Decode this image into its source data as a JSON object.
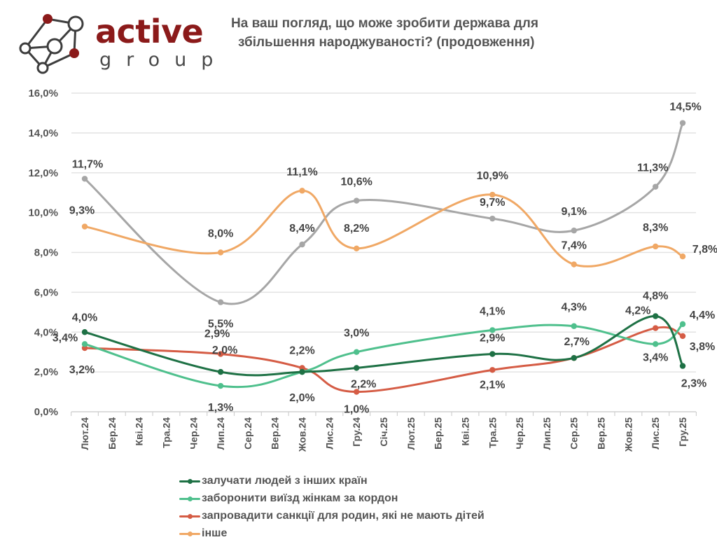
{
  "brand": {
    "name_top": "active",
    "name_bottom": "group",
    "logo_icon": "network-nodes-icon",
    "colors": {
      "primary": "#8b1a1a",
      "secondary": "#4a4a4a"
    }
  },
  "title": {
    "line1": "На ваш погляд, що може зробити держава для",
    "line2": "збільшення народжуваності? (продовження)"
  },
  "chart_data": {
    "type": "line",
    "title": "На ваш погляд, що може зробити держава для збільшення народжуваності? (продовження)",
    "xlabel": "",
    "ylabel": "",
    "ylim": [
      0,
      16
    ],
    "y_ticks": [
      "0,0%",
      "2,0%",
      "4,0%",
      "6,0%",
      "8,0%",
      "10,0%",
      "12,0%",
      "14,0%",
      "16,0%"
    ],
    "y_tick_values": [
      0,
      2,
      4,
      6,
      8,
      10,
      12,
      14,
      16
    ],
    "grid": true,
    "smooth": true,
    "legend_position": "bottom",
    "categories": [
      "Лют.24",
      "Бер.24",
      "Кві.24",
      "Тра.24",
      "Чер.24",
      "Лип.24",
      "Сер.24",
      "Вер.24",
      "Жов.24",
      "Лис.24",
      "Гру.24",
      "Січ.25",
      "Лют.25",
      "Бер.25",
      "Кві.25",
      "Тра.25",
      "Чер.25",
      "Лип.25",
      "Сер.25",
      "Вер.25",
      "Жов.25",
      "Лис.25",
      "Гру.25"
    ],
    "series": [
      {
        "name": "залучати людей з інших країн",
        "color": "#1e7145",
        "points": [
          {
            "x": "Лют.24",
            "y": 4.0,
            "label": "4,0%"
          },
          {
            "x": "Лип.24",
            "y": 2.0,
            "label": "2,0%"
          },
          {
            "x": "Жов.24",
            "y": 2.0,
            "label": "2,0%"
          },
          {
            "x": "Гру.24",
            "y": 2.2,
            "label": "2,2%"
          },
          {
            "x": "Тра.25",
            "y": 2.9,
            "label": "2,9%"
          },
          {
            "x": "Сер.25",
            "y": 2.7,
            "label": "2,7%"
          },
          {
            "x": "Лис.25",
            "y": 4.8,
            "label": "4,8%"
          },
          {
            "x": "Гру.25",
            "y": 2.3,
            "label": "2,3%"
          }
        ]
      },
      {
        "name": "заборонити виїзд жінкам за кордон",
        "color": "#4fc08d",
        "points": [
          {
            "x": "Лют.24",
            "y": 3.4,
            "label": "3,4%"
          },
          {
            "x": "Лип.24",
            "y": 1.3,
            "label": "1,3%"
          },
          {
            "x": "Жов.24",
            "y": 2.0,
            "label": ""
          },
          {
            "x": "Гру.24",
            "y": 3.0,
            "label": "3,0%"
          },
          {
            "x": "Тра.25",
            "y": 4.1,
            "label": "4,1%"
          },
          {
            "x": "Сер.25",
            "y": 4.3,
            "label": "4,3%"
          },
          {
            "x": "Лис.25",
            "y": 3.4,
            "label": "3,4%"
          },
          {
            "x": "Гру.25",
            "y": 4.4,
            "label": "4,4%"
          }
        ]
      },
      {
        "name": "запровадити санкції для родин, які не мають дітей",
        "color": "#d55c45",
        "points": [
          {
            "x": "Лют.24",
            "y": 3.2,
            "label": "3,2%"
          },
          {
            "x": "Лип.24",
            "y": 2.9,
            "label": "2,9%"
          },
          {
            "x": "Жов.24",
            "y": 2.2,
            "label": "2,2%"
          },
          {
            "x": "Гру.24",
            "y": 1.0,
            "label": "1,0%"
          },
          {
            "x": "Тра.25",
            "y": 2.1,
            "label": "2,1%"
          },
          {
            "x": "Сер.25",
            "y": 2.7,
            "label": ""
          },
          {
            "x": "Лис.25",
            "y": 4.2,
            "label": "4,2%"
          },
          {
            "x": "Гру.25",
            "y": 3.8,
            "label": "3,8%"
          }
        ]
      },
      {
        "name": "інше",
        "color": "#f0a865",
        "points": [
          {
            "x": "Лют.24",
            "y": 9.3,
            "label": "9,3%"
          },
          {
            "x": "Лип.24",
            "y": 8.0,
            "label": "8,0%"
          },
          {
            "x": "Жов.24",
            "y": 11.1,
            "label": "11,1%"
          },
          {
            "x": "Гру.24",
            "y": 8.2,
            "label": "8,2%"
          },
          {
            "x": "Тра.25",
            "y": 10.9,
            "label": "10,9%"
          },
          {
            "x": "Сер.25",
            "y": 7.4,
            "label": "7,4%"
          },
          {
            "x": "Лис.25",
            "y": 8.3,
            "label": "8,3%"
          },
          {
            "x": "Гру.25",
            "y": 7.8,
            "label": "7,8%"
          }
        ]
      },
      {
        "name": "",
        "color": "#a6a6a6",
        "in_legend": false,
        "points": [
          {
            "x": "Лют.24",
            "y": 11.7,
            "label": "11,7%"
          },
          {
            "x": "Лип.24",
            "y": 5.5,
            "label": "5,5%"
          },
          {
            "x": "Жов.24",
            "y": 8.4,
            "label": "8,4%"
          },
          {
            "x": "Гру.24",
            "y": 10.6,
            "label": "10,6%"
          },
          {
            "x": "Тра.25",
            "y": 9.7,
            "label": "9,7%"
          },
          {
            "x": "Сер.25",
            "y": 9.1,
            "label": "9,1%"
          },
          {
            "x": "Лис.25",
            "y": 11.3,
            "label": "11,3%"
          },
          {
            "x": "Гру.25",
            "y": 14.5,
            "label": "14,5%"
          }
        ]
      }
    ]
  },
  "legend": {
    "items": [
      {
        "label": "залучати людей з інших країн",
        "color": "#1e7145"
      },
      {
        "label": "заборонити виїзд жінкам за кордон",
        "color": "#4fc08d"
      },
      {
        "label": "запровадити санкції для родин, які не мають дітей",
        "color": "#d55c45"
      },
      {
        "label": "інше",
        "color": "#f0a865"
      }
    ]
  },
  "grid_color": "#e3e3e3"
}
